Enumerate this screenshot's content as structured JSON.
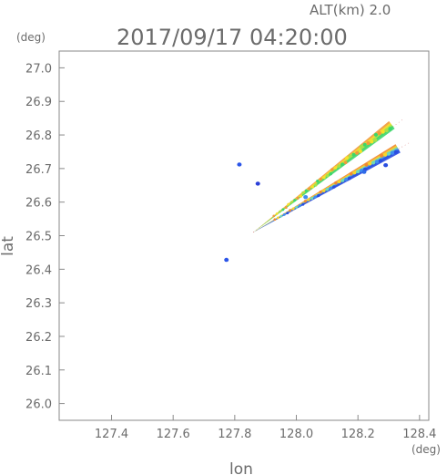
{
  "chart_data": {
    "type": "scatter",
    "title": "2017/09/17 04:20:00",
    "subtitle": "ALT(km) 2.0",
    "xlabel": "lon",
    "ylabel": "lat",
    "xunit": "(deg)",
    "yunit": "(deg)",
    "xlim": [
      127.23,
      128.43
    ],
    "ylim": [
      25.95,
      27.05
    ],
    "xticks": [
      "127.4",
      "127.6",
      "127.8",
      "128.0",
      "128.2",
      "128.4"
    ],
    "yticks": [
      "26.0",
      "26.1",
      "26.2",
      "26.3",
      "26.4",
      "26.5",
      "26.6",
      "26.7",
      "26.8",
      "26.9",
      "27.0"
    ],
    "grid": false,
    "sweep_origin": [
      127.86,
      26.51
    ],
    "beams": [
      {
        "end": [
          128.31,
          26.83
        ],
        "width": 0.006,
        "colors": [
          "#f09a3a",
          "#f7e02a",
          "#a6e04a",
          "#3dd66b"
        ]
      },
      {
        "end": [
          128.33,
          26.76
        ],
        "width": 0.005,
        "colors": [
          "#f08a30",
          "#f7d52a",
          "#6fd9b8",
          "#3f8df0",
          "#2a4de0"
        ]
      }
    ],
    "blobs": [
      {
        "x": 127.815,
        "y": 26.712,
        "color": "#2b55e8"
      },
      {
        "x": 127.875,
        "y": 26.655,
        "color": "#2a3fd8"
      },
      {
        "x": 127.773,
        "y": 26.428,
        "color": "#2b55e8"
      },
      {
        "x": 128.03,
        "y": 26.615,
        "color": "#3f8df0"
      },
      {
        "x": 128.22,
        "y": 26.69,
        "color": "#2f6be8"
      },
      {
        "x": 128.29,
        "y": 26.71,
        "color": "#2a4de0"
      }
    ]
  }
}
